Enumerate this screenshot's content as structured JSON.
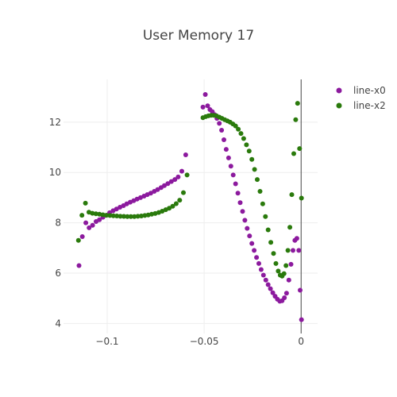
{
  "chart_data": {
    "type": "scatter",
    "title": "User Memory 17",
    "xlabel": "",
    "ylabel": "",
    "xlim": [
      -0.1225,
      0.0085
    ],
    "ylim": [
      3.6,
      13.7
    ],
    "x_ticks": [
      -0.1,
      -0.05,
      0
    ],
    "x_tick_labels": [
      "−0.1",
      "−0.05",
      "0"
    ],
    "y_ticks": [
      4,
      6,
      8,
      10,
      12
    ],
    "y_tick_labels": [
      "4",
      "6",
      "8",
      "10",
      "12"
    ],
    "grid": true,
    "legend_position": "top-right",
    "series": [
      {
        "name": "line-x0",
        "color": "#8c1a9e",
        "points": [
          [
            -0.1145,
            6.3
          ],
          [
            -0.1128,
            7.45
          ],
          [
            -0.111,
            8.0
          ],
          [
            -0.1093,
            7.8
          ],
          [
            -0.1075,
            7.9
          ],
          [
            -0.1057,
            8.05
          ],
          [
            -0.104,
            8.12
          ],
          [
            -0.1022,
            8.22
          ],
          [
            -0.1004,
            8.3
          ],
          [
            -0.0987,
            8.4
          ],
          [
            -0.0969,
            8.48
          ],
          [
            -0.0952,
            8.55
          ],
          [
            -0.0934,
            8.62
          ],
          [
            -0.0916,
            8.68
          ],
          [
            -0.0899,
            8.75
          ],
          [
            -0.0881,
            8.82
          ],
          [
            -0.0863,
            8.88
          ],
          [
            -0.0846,
            8.94
          ],
          [
            -0.0828,
            9.0
          ],
          [
            -0.081,
            9.06
          ],
          [
            -0.0793,
            9.12
          ],
          [
            -0.0775,
            9.18
          ],
          [
            -0.0757,
            9.25
          ],
          [
            -0.074,
            9.32
          ],
          [
            -0.0722,
            9.4
          ],
          [
            -0.0705,
            9.48
          ],
          [
            -0.0687,
            9.56
          ],
          [
            -0.0669,
            9.64
          ],
          [
            -0.0651,
            9.72
          ],
          [
            -0.0634,
            9.82
          ],
          [
            -0.0615,
            10.05
          ],
          [
            -0.0595,
            10.7
          ],
          [
            -0.0506,
            12.6
          ],
          [
            -0.0494,
            13.1
          ],
          [
            -0.0482,
            12.65
          ],
          [
            -0.047,
            12.5
          ],
          [
            -0.0458,
            12.42
          ],
          [
            -0.0446,
            12.3
          ],
          [
            -0.0434,
            12.15
          ],
          [
            -0.0422,
            11.95
          ],
          [
            -0.041,
            11.68
          ],
          [
            -0.0398,
            11.3
          ],
          [
            -0.0386,
            10.92
          ],
          [
            -0.0374,
            10.58
          ],
          [
            -0.0362,
            10.25
          ],
          [
            -0.035,
            9.9
          ],
          [
            -0.0338,
            9.55
          ],
          [
            -0.0326,
            9.18
          ],
          [
            -0.0314,
            8.8
          ],
          [
            -0.0302,
            8.45
          ],
          [
            -0.029,
            8.1
          ],
          [
            -0.0278,
            7.78
          ],
          [
            -0.0266,
            7.48
          ],
          [
            -0.0254,
            7.18
          ],
          [
            -0.0242,
            6.9
          ],
          [
            -0.023,
            6.62
          ],
          [
            -0.0218,
            6.38
          ],
          [
            -0.0206,
            6.14
          ],
          [
            -0.0194,
            5.92
          ],
          [
            -0.0182,
            5.72
          ],
          [
            -0.017,
            5.54
          ],
          [
            -0.0158,
            5.38
          ],
          [
            -0.0146,
            5.22
          ],
          [
            -0.0134,
            5.08
          ],
          [
            -0.0122,
            4.96
          ],
          [
            -0.011,
            4.88
          ],
          [
            -0.0098,
            4.9
          ],
          [
            -0.0086,
            5.02
          ],
          [
            -0.0075,
            5.2
          ],
          [
            -0.0063,
            5.72
          ],
          [
            -0.0052,
            6.35
          ],
          [
            -0.0042,
            6.9
          ],
          [
            -0.0032,
            7.3
          ],
          [
            -0.0022,
            7.38
          ],
          [
            -0.0012,
            6.9
          ],
          [
            -0.0005,
            5.32
          ],
          [
            0.0002,
            4.15
          ]
        ]
      },
      {
        "name": "line-x2",
        "color": "#2a7a0c",
        "points": [
          [
            -0.1148,
            7.3
          ],
          [
            -0.113,
            8.3
          ],
          [
            -0.1112,
            8.78
          ],
          [
            -0.1094,
            8.42
          ],
          [
            -0.1076,
            8.38
          ],
          [
            -0.1058,
            8.36
          ],
          [
            -0.104,
            8.34
          ],
          [
            -0.1022,
            8.32
          ],
          [
            -0.1004,
            8.3
          ],
          [
            -0.0986,
            8.29
          ],
          [
            -0.0968,
            8.28
          ],
          [
            -0.095,
            8.27
          ],
          [
            -0.0932,
            8.26
          ],
          [
            -0.0914,
            8.255
          ],
          [
            -0.0896,
            8.25
          ],
          [
            -0.0878,
            8.25
          ],
          [
            -0.086,
            8.25
          ],
          [
            -0.0842,
            8.26
          ],
          [
            -0.0824,
            8.27
          ],
          [
            -0.0806,
            8.29
          ],
          [
            -0.0788,
            8.31
          ],
          [
            -0.077,
            8.34
          ],
          [
            -0.0752,
            8.37
          ],
          [
            -0.0734,
            8.41
          ],
          [
            -0.0716,
            8.46
          ],
          [
            -0.0698,
            8.52
          ],
          [
            -0.068,
            8.58
          ],
          [
            -0.0662,
            8.66
          ],
          [
            -0.0644,
            8.76
          ],
          [
            -0.0626,
            8.9
          ],
          [
            -0.0607,
            9.2
          ],
          [
            -0.0588,
            9.9
          ],
          [
            -0.0506,
            12.18
          ],
          [
            -0.0492,
            12.22
          ],
          [
            -0.0478,
            12.25
          ],
          [
            -0.0464,
            12.27
          ],
          [
            -0.045,
            12.27
          ],
          [
            -0.0436,
            12.25
          ],
          [
            -0.0422,
            12.2
          ],
          [
            -0.0408,
            12.15
          ],
          [
            -0.0394,
            12.1
          ],
          [
            -0.038,
            12.05
          ],
          [
            -0.0366,
            12.0
          ],
          [
            -0.0352,
            11.93
          ],
          [
            -0.0338,
            11.85
          ],
          [
            -0.0324,
            11.72
          ],
          [
            -0.031,
            11.55
          ],
          [
            -0.0296,
            11.35
          ],
          [
            -0.0282,
            11.1
          ],
          [
            -0.0268,
            10.85
          ],
          [
            -0.0254,
            10.52
          ],
          [
            -0.024,
            10.12
          ],
          [
            -0.0226,
            9.72
          ],
          [
            -0.0212,
            9.25
          ],
          [
            -0.0198,
            8.75
          ],
          [
            -0.0184,
            8.25
          ],
          [
            -0.017,
            7.72
          ],
          [
            -0.0156,
            7.22
          ],
          [
            -0.0142,
            6.78
          ],
          [
            -0.013,
            6.38
          ],
          [
            -0.0118,
            6.08
          ],
          [
            -0.0108,
            5.92
          ],
          [
            -0.0098,
            5.88
          ],
          [
            -0.0088,
            5.98
          ],
          [
            -0.0078,
            6.3
          ],
          [
            -0.0068,
            6.9
          ],
          [
            -0.0058,
            7.82
          ],
          [
            -0.0048,
            9.12
          ],
          [
            -0.0038,
            10.75
          ],
          [
            -0.0028,
            12.1
          ],
          [
            -0.0018,
            12.75
          ],
          [
            -0.0008,
            10.95
          ],
          [
            0.0002,
            8.98
          ]
        ]
      }
    ]
  }
}
